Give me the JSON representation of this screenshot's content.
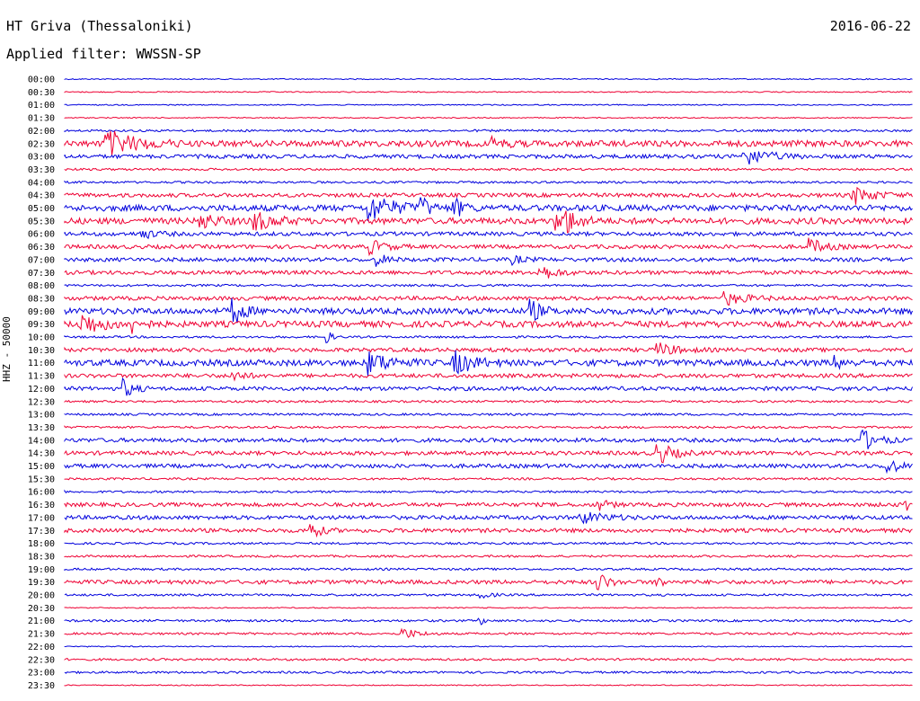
{
  "header": {
    "station": "HT Griva (Thessaloniki)",
    "date": "2016-06-22",
    "filter_label": "Applied filter: WWSSN-SP"
  },
  "chart_data": {
    "type": "line",
    "title": "HT Griva (Thessaloniki)",
    "subtitle": "Applied filter: WWSSN-SP",
    "ylabel": "HHZ - 50000",
    "xlabel": "",
    "grid": false,
    "series_colors": [
      "#0000dd",
      "#ee0033"
    ],
    "rows": [
      {
        "label": "00:00",
        "color": "blue",
        "amplitude": "very low"
      },
      {
        "label": "00:30",
        "color": "red",
        "amplitude": "very low"
      },
      {
        "label": "01:00",
        "color": "blue",
        "amplitude": "very low"
      },
      {
        "label": "01:30",
        "color": "red",
        "amplitude": "very low"
      },
      {
        "label": "02:00",
        "color": "blue",
        "amplitude": "low"
      },
      {
        "label": "02:30",
        "color": "red",
        "amplitude": "high"
      },
      {
        "label": "03:00",
        "color": "blue",
        "amplitude": "medium"
      },
      {
        "label": "03:30",
        "color": "red",
        "amplitude": "low"
      },
      {
        "label": "04:00",
        "color": "blue",
        "amplitude": "low"
      },
      {
        "label": "04:30",
        "color": "red",
        "amplitude": "medium"
      },
      {
        "label": "05:00",
        "color": "blue",
        "amplitude": "high"
      },
      {
        "label": "05:30",
        "color": "red",
        "amplitude": "high"
      },
      {
        "label": "06:00",
        "color": "blue",
        "amplitude": "medium"
      },
      {
        "label": "06:30",
        "color": "red",
        "amplitude": "medium"
      },
      {
        "label": "07:00",
        "color": "blue",
        "amplitude": "medium"
      },
      {
        "label": "07:30",
        "color": "red",
        "amplitude": "medium"
      },
      {
        "label": "08:00",
        "color": "blue",
        "amplitude": "low"
      },
      {
        "label": "08:30",
        "color": "red",
        "amplitude": "medium"
      },
      {
        "label": "09:00",
        "color": "blue",
        "amplitude": "high"
      },
      {
        "label": "09:30",
        "color": "red",
        "amplitude": "high"
      },
      {
        "label": "10:00",
        "color": "blue",
        "amplitude": "low"
      },
      {
        "label": "10:30",
        "color": "red",
        "amplitude": "medium"
      },
      {
        "label": "11:00",
        "color": "blue",
        "amplitude": "high"
      },
      {
        "label": "11:30",
        "color": "red",
        "amplitude": "medium"
      },
      {
        "label": "12:00",
        "color": "blue",
        "amplitude": "medium"
      },
      {
        "label": "12:30",
        "color": "red",
        "amplitude": "low"
      },
      {
        "label": "13:00",
        "color": "blue",
        "amplitude": "low"
      },
      {
        "label": "13:30",
        "color": "red",
        "amplitude": "low"
      },
      {
        "label": "14:00",
        "color": "blue",
        "amplitude": "medium"
      },
      {
        "label": "14:30",
        "color": "red",
        "amplitude": "medium"
      },
      {
        "label": "15:00",
        "color": "blue",
        "amplitude": "medium"
      },
      {
        "label": "15:30",
        "color": "red",
        "amplitude": "low"
      },
      {
        "label": "16:00",
        "color": "blue",
        "amplitude": "low"
      },
      {
        "label": "16:30",
        "color": "red",
        "amplitude": "medium"
      },
      {
        "label": "17:00",
        "color": "blue",
        "amplitude": "medium"
      },
      {
        "label": "17:30",
        "color": "red",
        "amplitude": "medium"
      },
      {
        "label": "18:00",
        "color": "blue",
        "amplitude": "low"
      },
      {
        "label": "18:30",
        "color": "red",
        "amplitude": "low"
      },
      {
        "label": "19:00",
        "color": "blue",
        "amplitude": "low"
      },
      {
        "label": "19:30",
        "color": "red",
        "amplitude": "medium"
      },
      {
        "label": "20:00",
        "color": "blue",
        "amplitude": "low"
      },
      {
        "label": "20:30",
        "color": "red",
        "amplitude": "very low"
      },
      {
        "label": "21:00",
        "color": "blue",
        "amplitude": "low"
      },
      {
        "label": "21:30",
        "color": "red",
        "amplitude": "low"
      },
      {
        "label": "22:00",
        "color": "blue",
        "amplitude": "very low"
      },
      {
        "label": "22:30",
        "color": "red",
        "amplitude": "low"
      },
      {
        "label": "23:00",
        "color": "blue",
        "amplitude": "low"
      },
      {
        "label": "23:30",
        "color": "red",
        "amplitude": "very low"
      }
    ]
  }
}
